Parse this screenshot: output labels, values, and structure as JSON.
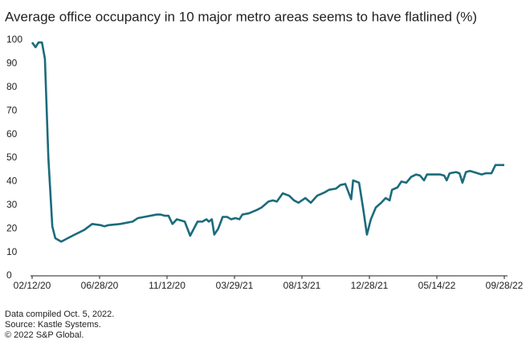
{
  "chart_data": {
    "type": "line",
    "title": "Average office occupancy in 10 major metro areas seems to have flatlined (%)",
    "notes": [
      "Data compiled Oct. 5, 2022.",
      "Source: Kastle Systems.",
      "© 2022 S&P Global."
    ],
    "x": [
      "2020-02-12",
      "2020-02-19",
      "2020-02-25",
      "2020-03-03",
      "2020-03-09",
      "2020-03-16",
      "2020-03-24",
      "2020-03-30",
      "2020-04-11",
      "2020-05-04",
      "2020-05-28",
      "2020-06-13",
      "2020-06-30",
      "2020-07-08",
      "2020-07-16",
      "2020-08-09",
      "2020-09-03",
      "2020-09-14",
      "2020-09-27",
      "2020-10-22",
      "2020-10-30",
      "2020-11-07",
      "2020-11-15",
      "2020-11-23",
      "2020-12-02",
      "2020-12-18",
      "2020-12-29",
      "2021-01-13",
      "2021-01-23",
      "2021-01-31",
      "2021-02-05",
      "2021-02-11",
      "2021-02-16",
      "2021-02-24",
      "2021-03-05",
      "2021-03-14",
      "2021-03-22",
      "2021-03-31",
      "2021-04-08",
      "2021-04-14",
      "2021-04-27",
      "2021-05-14",
      "2021-05-23",
      "2021-06-06",
      "2021-06-15",
      "2021-06-23",
      "2021-07-05",
      "2021-07-18",
      "2021-07-28",
      "2021-08-06",
      "2021-08-20",
      "2021-08-31",
      "2021-09-13",
      "2021-09-29",
      "2021-10-07",
      "2021-10-21",
      "2021-10-30",
      "2021-11-09",
      "2021-11-21",
      "2021-11-25",
      "2021-12-07",
      "2021-12-15",
      "2021-12-23",
      "2021-12-31",
      "2022-01-10",
      "2022-01-21",
      "2022-01-30",
      "2022-02-07",
      "2022-02-12",
      "2022-02-23",
      "2022-03-03",
      "2022-03-13",
      "2022-03-23",
      "2022-04-02",
      "2022-04-10",
      "2022-04-18",
      "2022-04-24",
      "2022-05-07",
      "2022-05-21",
      "2022-05-29",
      "2022-06-03",
      "2022-06-09",
      "2022-06-22",
      "2022-06-29",
      "2022-07-05",
      "2022-07-12",
      "2022-07-20",
      "2022-08-05",
      "2022-08-13",
      "2022-08-21",
      "2022-09-02",
      "2022-09-10",
      "2022-09-28"
    ],
    "series": [
      {
        "name": "Average office occupancy",
        "color": "#1b6b7b",
        "values": [
          99,
          97,
          99,
          99,
          92,
          50,
          21,
          16,
          14.5,
          17,
          19.5,
          22,
          21.5,
          21,
          21.5,
          22,
          23,
          24.5,
          25,
          26,
          26,
          25.5,
          25.5,
          22,
          24,
          23,
          17,
          23,
          23,
          24,
          23,
          24,
          17.5,
          20,
          25,
          25,
          24,
          24.5,
          24,
          26,
          26.5,
          28,
          29,
          31.5,
          32,
          31.5,
          35,
          34,
          32,
          31,
          33,
          31,
          34,
          35.5,
          36.5,
          37,
          38.5,
          39,
          32.5,
          40.5,
          39.5,
          29,
          17.5,
          24,
          29,
          31,
          33,
          32,
          36.5,
          37.5,
          40,
          39.5,
          42,
          43,
          42.5,
          40.5,
          43,
          43,
          43,
          42.5,
          40.5,
          43.5,
          44,
          43.5,
          39.5,
          44,
          44.5,
          43.5,
          43,
          43.5,
          43.5,
          47,
          47
        ]
      }
    ],
    "xlim": [
      "2020-02-12",
      "2022-09-28"
    ],
    "xticks": [
      {
        "value": "2020-02-12",
        "label": "02/12/20"
      },
      {
        "value": "2020-06-28",
        "label": "06/28/20"
      },
      {
        "value": "2020-11-12",
        "label": "11/12/20"
      },
      {
        "value": "2021-03-29",
        "label": "03/29/21"
      },
      {
        "value": "2021-08-13",
        "label": "08/13/21"
      },
      {
        "value": "2021-12-28",
        "label": "12/28/21"
      },
      {
        "value": "2022-05-14",
        "label": "05/14/22"
      },
      {
        "value": "2022-09-28",
        "label": "09/28/22"
      }
    ],
    "ylim": [
      0,
      100
    ],
    "yticks": [
      0,
      10,
      20,
      30,
      40,
      50,
      60,
      70,
      80,
      90,
      100
    ],
    "grid": false
  }
}
